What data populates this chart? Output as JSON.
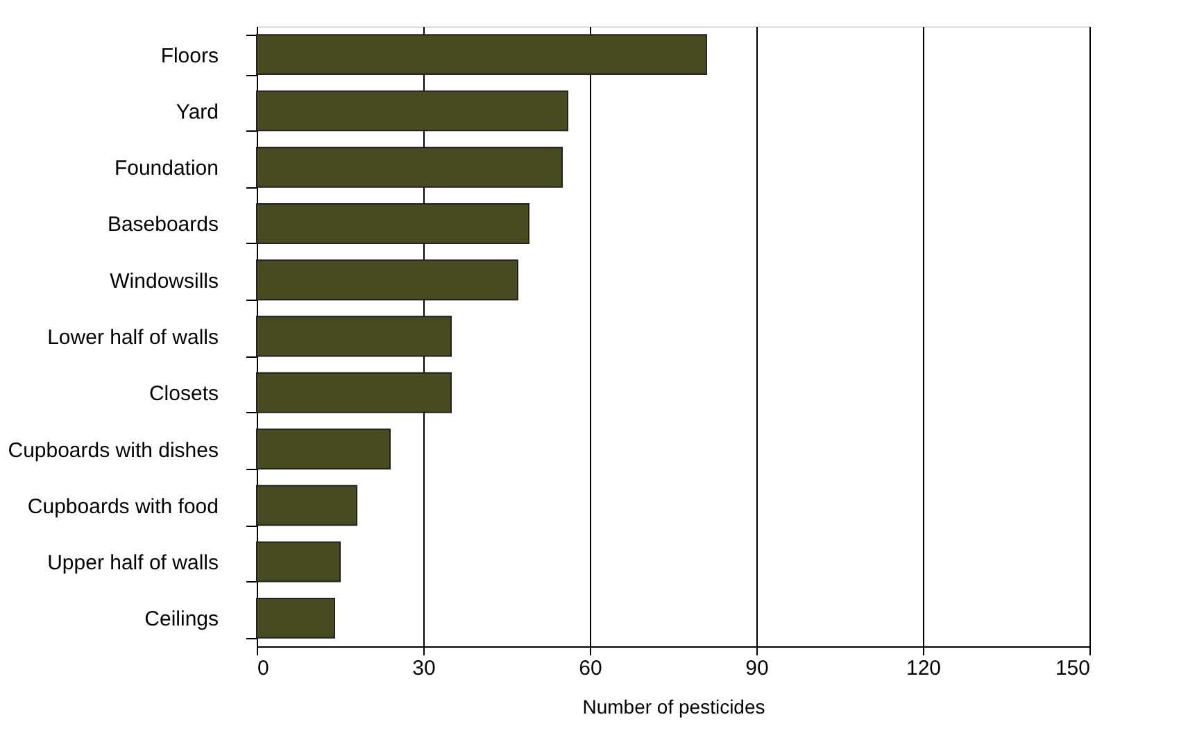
{
  "chart_data": {
    "type": "bar",
    "orientation": "horizontal",
    "xlabel": "Number of pesticides",
    "categories": [
      "Floors",
      "Yard",
      "Foundation",
      "Baseboards",
      "Windowsills",
      "Lower half of walls",
      "Closets",
      "Cupboards with dishes",
      "Cupboards with food",
      "Upper half of walls",
      "Ceilings"
    ],
    "values": [
      81,
      56,
      55,
      49,
      47,
      35,
      35,
      24,
      18,
      15,
      14
    ],
    "color": "#474b1f",
    "xlim": [
      0,
      150
    ],
    "xticks": [
      0,
      30,
      60,
      90,
      120,
      150
    ],
    "grid": "x"
  }
}
